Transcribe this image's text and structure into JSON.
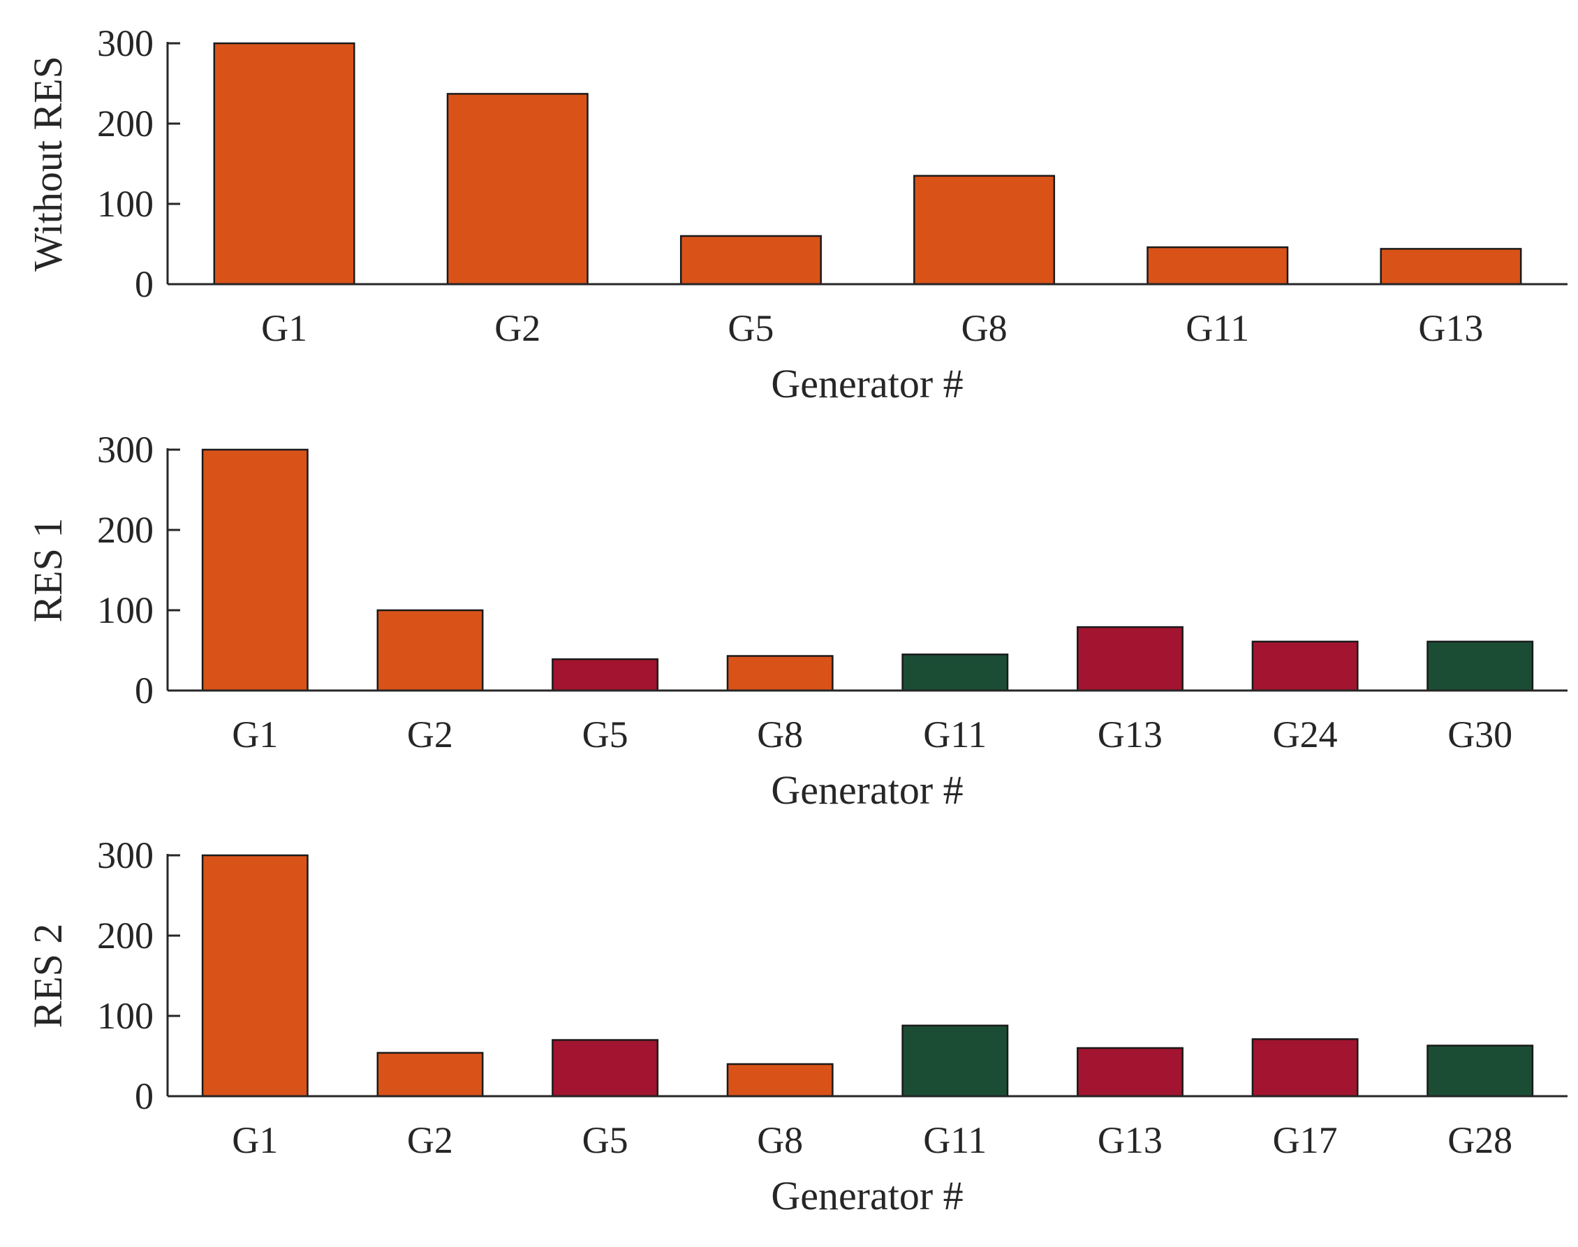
{
  "chart_data": [
    {
      "type": "bar",
      "title": "",
      "ylabel": "Without RES",
      "xlabel": "Generator #",
      "ylim": [
        0,
        300
      ],
      "yticks": [
        0,
        100,
        200,
        300
      ],
      "categories": [
        "G1",
        "G2",
        "G5",
        "G8",
        "G11",
        "G13"
      ],
      "values": [
        300,
        237,
        60,
        135,
        46,
        44
      ],
      "bar_colors": [
        "#D95319",
        "#D95319",
        "#D95319",
        "#D95319",
        "#D95319",
        "#D95319"
      ]
    },
    {
      "type": "bar",
      "title": "",
      "ylabel": "RES 1",
      "xlabel": "Generator #",
      "ylim": [
        0,
        300
      ],
      "yticks": [
        0,
        100,
        200,
        300
      ],
      "categories": [
        "G1",
        "G2",
        "G5",
        "G8",
        "G11",
        "G13",
        "G24",
        "G30"
      ],
      "values": [
        300,
        100,
        39,
        43,
        45,
        79,
        61,
        61
      ],
      "bar_colors": [
        "#D95319",
        "#D95319",
        "#A2142F",
        "#D95319",
        "#1B4D35",
        "#A2142F",
        "#A2142F",
        "#1B4D35"
      ]
    },
    {
      "type": "bar",
      "title": "",
      "ylabel": "RES 2",
      "xlabel": "Generator #",
      "ylim": [
        0,
        300
      ],
      "yticks": [
        0,
        100,
        200,
        300
      ],
      "categories": [
        "G1",
        "G2",
        "G5",
        "G8",
        "G11",
        "G13",
        "G17",
        "G28"
      ],
      "values": [
        300,
        54,
        70,
        40,
        88,
        60,
        71,
        63
      ],
      "bar_colors": [
        "#D95319",
        "#D95319",
        "#A2142F",
        "#D95319",
        "#1B4D35",
        "#A2142F",
        "#A2142F",
        "#1B4D35"
      ]
    }
  ]
}
